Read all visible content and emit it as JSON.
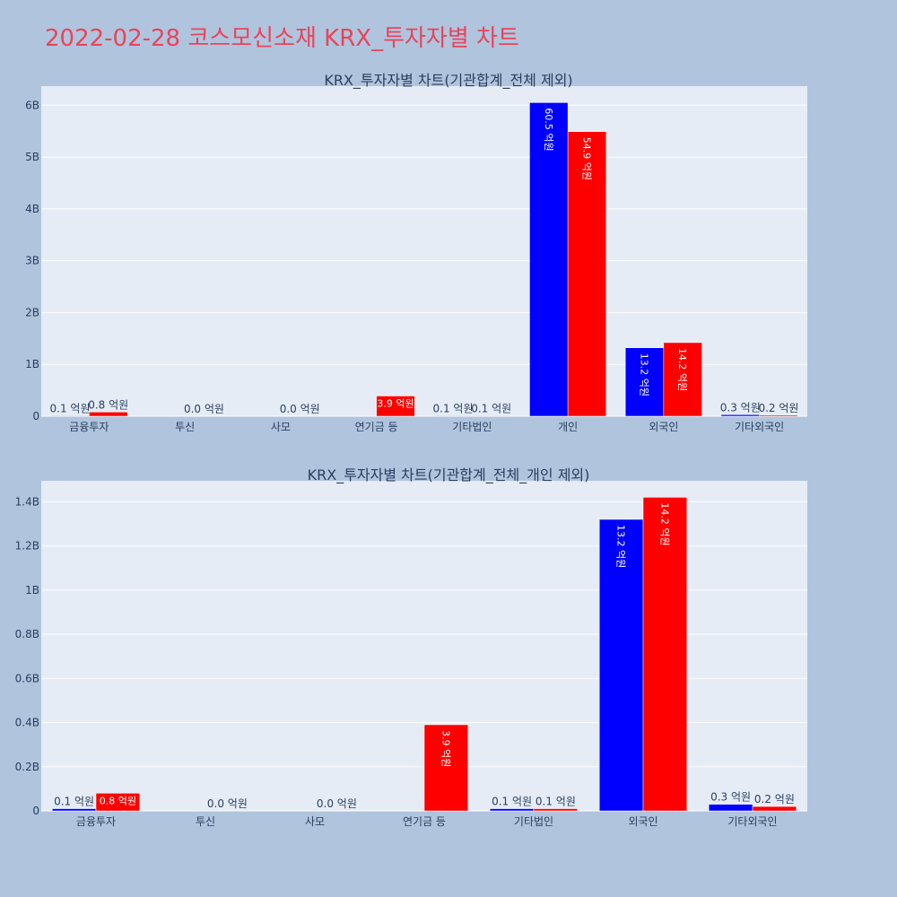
{
  "title": "2022-02-28 코스모신소재 KRX_투자자별 차트",
  "chart_data": [
    {
      "type": "bar",
      "title": "KRX_투자자별 차트(기관합계_전체 제외)",
      "categories": [
        "금융투자",
        "투신",
        "사모",
        "연기금 등",
        "기타법인",
        "개인",
        "외국인",
        "기타외국인"
      ],
      "series": [
        {
          "values": [
            10000000,
            0,
            0,
            0,
            10000000,
            6050000000,
            1320000000,
            30000000
          ],
          "color": "#0000ff",
          "labels": [
            "0.1 억원",
            "",
            "",
            "",
            "0.1 억원",
            "60.5 억원",
            "13.2 억원",
            "0.3 억원"
          ]
        },
        {
          "values": [
            80000000,
            0,
            0,
            390000000,
            10000000,
            5490000000,
            1420000000,
            20000000
          ],
          "color": "#ff0000",
          "labels": [
            "0.8 억원",
            "0.0 억원",
            "0.0 억원",
            "3.9 억원",
            "0.1 억원",
            "54.9 억원",
            "14.2 억원",
            "0.2 억원"
          ]
        }
      ],
      "yticks": [
        0,
        1000000000,
        2000000000,
        3000000000,
        4000000000,
        5000000000,
        6000000000
      ],
      "ytick_labels": [
        "0",
        "1B",
        "2B",
        "3B",
        "4B",
        "5B",
        "6B"
      ],
      "ylim": [
        0,
        6368421053
      ]
    },
    {
      "type": "bar",
      "title": "KRX_투자자별 차트(기관합계_전체_개인 제외)",
      "categories": [
        "금융투자",
        "투신",
        "사모",
        "연기금 등",
        "기타법인",
        "외국인",
        "기타외국인"
      ],
      "series": [
        {
          "values": [
            10000000,
            0,
            0,
            0,
            10000000,
            1320000000,
            30000000
          ],
          "color": "#0000ff",
          "labels": [
            "0.1 억원",
            "",
            "",
            "",
            "0.1 억원",
            "13.2 억원",
            "0.3 억원"
          ]
        },
        {
          "values": [
            80000000,
            0,
            0,
            390000000,
            10000000,
            1420000000,
            20000000
          ],
          "color": "#ff0000",
          "labels": [
            "0.8 억원",
            "0.0 억원",
            "0.0 억원",
            "3.9 억원",
            "0.1 억원",
            "14.2 억원",
            "0.2 억원"
          ]
        }
      ],
      "yticks": [
        0,
        200000000,
        400000000,
        600000000,
        800000000,
        1000000000,
        1200000000,
        1400000000
      ],
      "ytick_labels": [
        "0",
        "0.2B",
        "0.4B",
        "0.6B",
        "0.8B",
        "1B",
        "1.2B",
        "1.4B"
      ],
      "ylim": [
        0,
        1494736842
      ]
    }
  ]
}
